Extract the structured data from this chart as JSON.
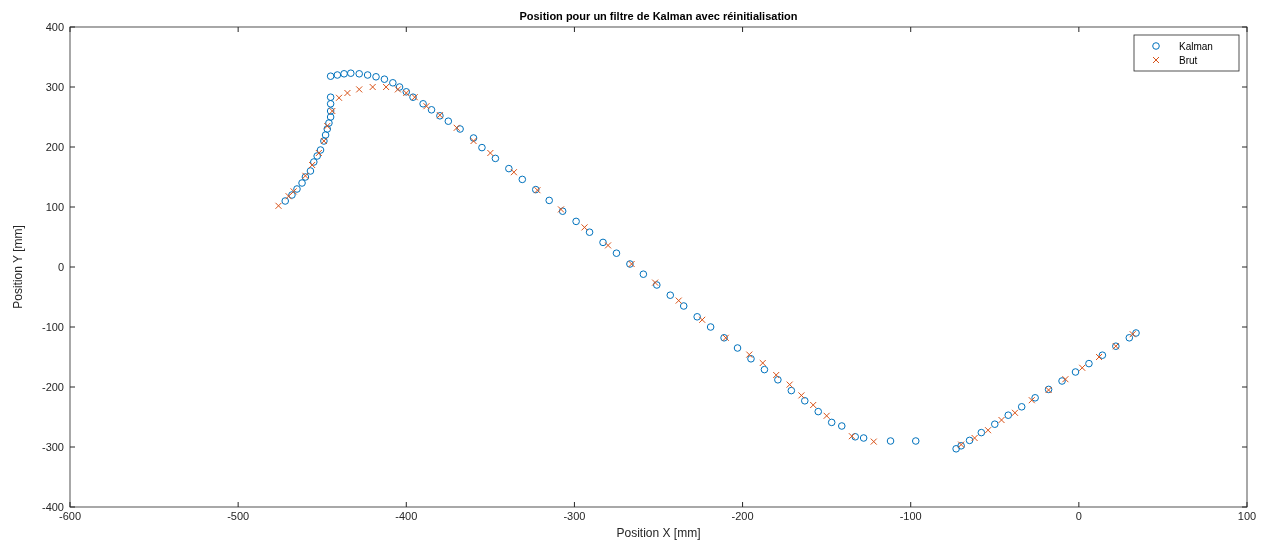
{
  "chart_data": {
    "type": "scatter",
    "title": "Position pour un filtre de Kalman avec réinitialisation",
    "xlabel": "Position X [mm]",
    "ylabel": "Position Y [mm]",
    "xlim": [
      -600,
      100
    ],
    "xticks": [
      -600,
      -500,
      -400,
      -300,
      -200,
      -100,
      0,
      100
    ],
    "ylim": [
      -400,
      400
    ],
    "yticks": [
      -400,
      -300,
      -200,
      -100,
      0,
      100,
      200,
      300,
      400
    ],
    "grid": false,
    "legend": "top right",
    "series": [
      {
        "name": "Kalman",
        "color": "#0072bd",
        "marker": "circle",
        "x": [
          -472,
          -468,
          -465,
          -462,
          -460,
          -457,
          -455,
          -453,
          -451,
          -449,
          -448,
          -447,
          -446,
          -445,
          -445,
          -445,
          -445,
          -445,
          -441,
          -437,
          -433,
          -428,
          -423,
          -418,
          -413,
          -408,
          -404,
          -400,
          -396,
          -390,
          -385,
          -380,
          -375,
          -368,
          -360,
          -355,
          -347,
          -339,
          -331,
          -323,
          -315,
          -307,
          -299,
          -291,
          -283,
          -275,
          -267,
          -259,
          -251,
          -243,
          -235,
          -227,
          -219,
          -211,
          -203,
          -195,
          -187,
          -179,
          -171,
          -163,
          -155,
          -147,
          -141,
          -133,
          -128,
          -112,
          -97,
          -73,
          -70,
          -65,
          -58,
          -50,
          -42,
          -34,
          -26,
          -18,
          -10,
          -2,
          6,
          14,
          22,
          30,
          34
        ],
        "values": [
          110,
          120,
          130,
          140,
          150,
          160,
          175,
          185,
          195,
          210,
          220,
          230,
          240,
          250,
          260,
          272,
          283,
          318,
          320,
          322,
          323,
          322,
          320,
          317,
          313,
          307,
          300,
          292,
          283,
          272,
          262,
          252,
          243,
          230,
          215,
          199,
          181,
          164,
          146,
          129,
          111,
          93,
          76,
          58,
          41,
          23,
          5,
          -12,
          -30,
          -47,
          -65,
          -83,
          -100,
          -118,
          -135,
          -153,
          -171,
          -188,
          -206,
          -223,
          -241,
          -259,
          -265,
          -283,
          -285,
          -290,
          -290,
          -303,
          -298,
          -289,
          -276,
          -262,
          -247,
          -233,
          -218,
          -204,
          -190,
          -175,
          -161,
          -147,
          -132,
          -118,
          -110
        ]
      },
      {
        "name": "Brut",
        "color": "#d95319",
        "marker": "cross",
        "x": [
          -476,
          -470,
          -467,
          -460,
          -456,
          -452,
          -449,
          -447,
          -444,
          -440,
          -435,
          -428,
          -420,
          -412,
          -405,
          -400,
          -395,
          -388,
          -380,
          -370,
          -360,
          -350,
          -336,
          -322,
          -308,
          -294,
          -280,
          -266,
          -252,
          -238,
          -224,
          -210,
          -196,
          -188,
          -180,
          -172,
          -165,
          -158,
          -150,
          -135,
          -122,
          -70,
          -62,
          -54,
          -46,
          -38,
          -28,
          -18,
          -8,
          2,
          12,
          22,
          32
        ],
        "values": [
          102,
          118,
          126,
          152,
          170,
          190,
          210,
          235,
          260,
          282,
          290,
          296,
          300,
          300,
          296,
          290,
          283,
          268,
          253,
          232,
          210,
          190,
          158,
          128,
          96,
          66,
          36,
          5,
          -26,
          -56,
          -88,
          -118,
          -146,
          -160,
          -180,
          -196,
          -214,
          -230,
          -248,
          -282,
          -291,
          -296,
          -285,
          -272,
          -255,
          -243,
          -222,
          -205,
          -187,
          -168,
          -150,
          -132,
          -112
        ]
      }
    ]
  }
}
